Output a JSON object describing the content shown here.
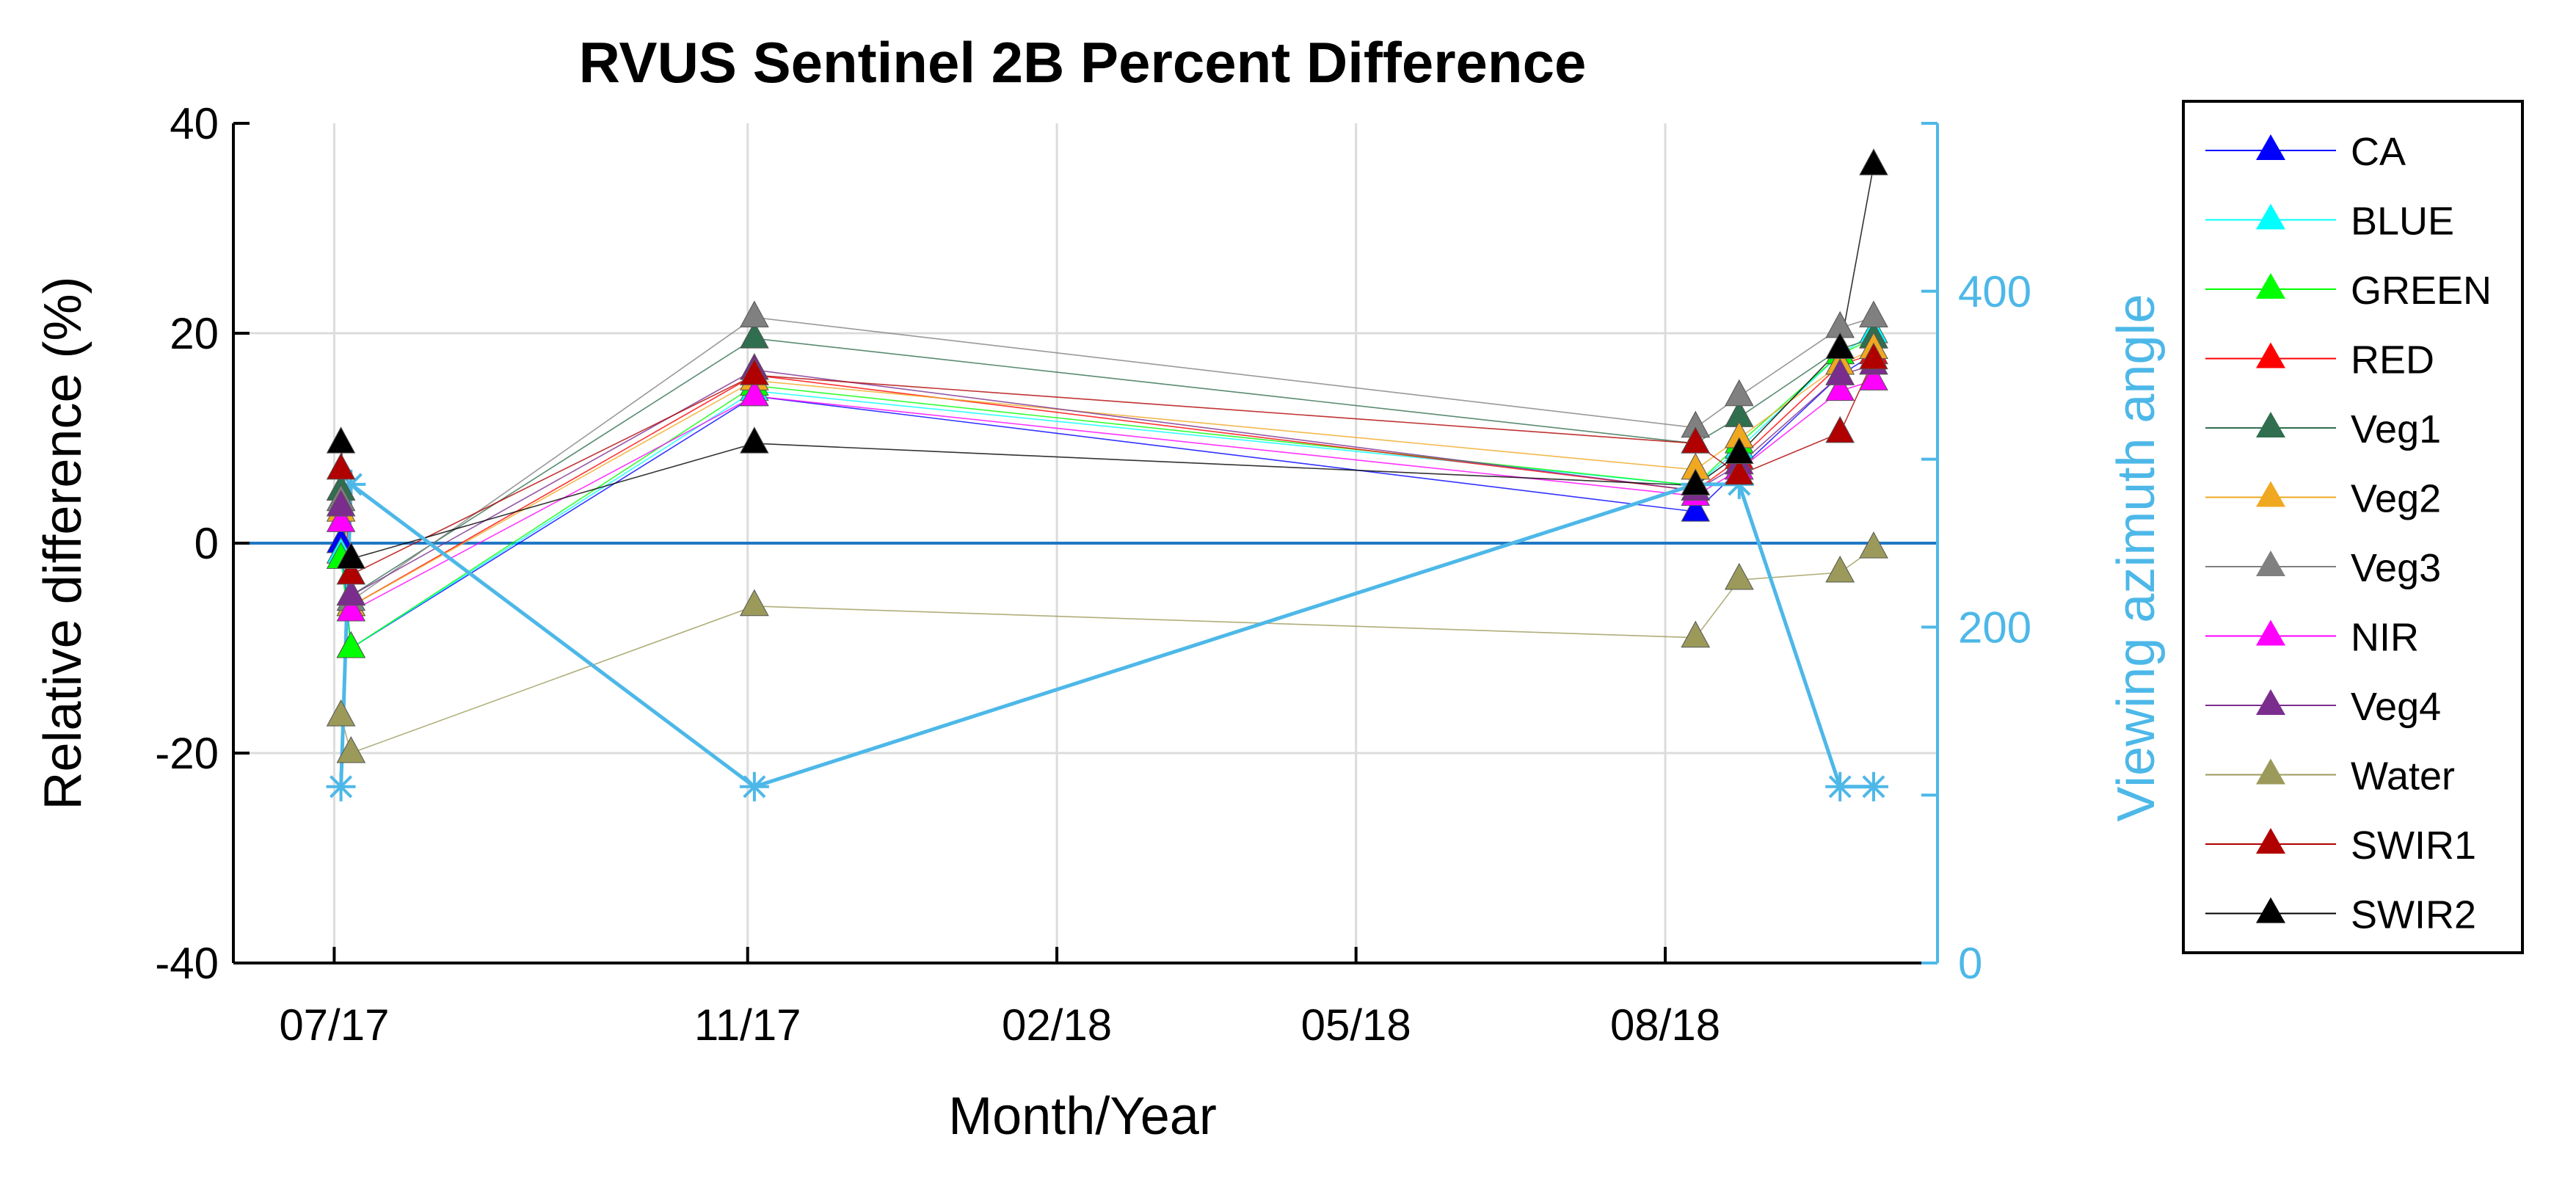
{
  "chart_data": {
    "type": "line",
    "title": "RVUS Sentinel 2B Percent Difference",
    "xlabel": "Month/Year",
    "ylabel": "Relative difference (%)",
    "y2label": "Viewing azimuth angle",
    "x_tick_labels": [
      "07/17",
      "11/17",
      "02/18",
      "05/18",
      "08/18"
    ],
    "ylim": [
      -40,
      40
    ],
    "y_ticks": [
      -40,
      -20,
      0,
      20,
      40
    ],
    "y2lim": [
      0,
      500
    ],
    "y2_ticks": [
      0,
      200,
      400
    ],
    "grid": true,
    "legend_position": "outside-right",
    "x": [
      "2017-07-03",
      "2017-07-06",
      "2017-11-03",
      "2018-08-10",
      "2018-08-23",
      "2018-09-22",
      "2018-10-02"
    ],
    "series": [
      {
        "name": "CA",
        "color": "#0000ff",
        "values": [
          0,
          -10,
          14,
          3,
          7,
          16,
          18
        ]
      },
      {
        "name": "BLUE",
        "color": "#00ffff",
        "values": [
          -1,
          -10,
          14.5,
          5.5,
          9,
          18,
          20
        ]
      },
      {
        "name": "GREEN",
        "color": "#00ff00",
        "values": [
          -1.5,
          -10,
          15,
          5.5,
          9.5,
          18,
          19.5
        ]
      },
      {
        "name": "RED",
        "color": "#ff0000",
        "values": [
          5,
          -6,
          16,
          5,
          8,
          17,
          18
        ]
      },
      {
        "name": "Veg1",
        "color": "#2f6e4e",
        "values": [
          5,
          -5,
          19.5,
          9.5,
          12,
          18.5,
          19.5
        ]
      },
      {
        "name": "Veg2",
        "color": "#f0a820",
        "values": [
          3,
          -6,
          15.5,
          7,
          10,
          17,
          18.5
        ]
      },
      {
        "name": "Veg3",
        "color": "#808080",
        "values": [
          4,
          -5.5,
          21.5,
          11,
          14,
          20.5,
          21.5
        ]
      },
      {
        "name": "NIR",
        "color": "#ff00ff",
        "values": [
          2,
          -6.5,
          14,
          4.5,
          7,
          14.5,
          15.5
        ]
      },
      {
        "name": "Veg4",
        "color": "#7b2d8e",
        "values": [
          3.5,
          -5,
          16.5,
          5,
          7.5,
          16,
          17
        ]
      },
      {
        "name": "Water",
        "color": "#9b9a5a",
        "values": [
          -16.5,
          -20,
          -6,
          -9,
          -3.5,
          -2.8,
          -0.5
        ]
      },
      {
        "name": "SWIR1",
        "color": "#b00000",
        "values": [
          7,
          -3,
          16,
          9.5,
          6.5,
          10.5,
          17.5
        ]
      },
      {
        "name": "SWIR2",
        "color": "#000000",
        "values": [
          9.5,
          -1.5,
          9.5,
          5.5,
          8.5,
          18.5,
          36
        ]
      }
    ],
    "azimuth_series": {
      "color": "#4db8e8",
      "values": [
        105,
        285,
        105,
        285,
        285,
        105,
        105
      ]
    }
  }
}
